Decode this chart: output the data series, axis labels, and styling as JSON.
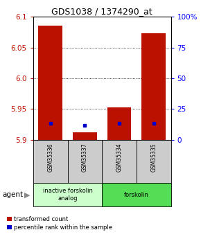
{
  "title": "GDS1038 / 1374290_at",
  "samples": [
    "GSM35336",
    "GSM35337",
    "GSM35334",
    "GSM35335"
  ],
  "red_values": [
    6.086,
    5.912,
    5.953,
    6.073
  ],
  "blue_values": [
    5.927,
    5.924,
    5.927,
    5.927
  ],
  "ymin": 5.9,
  "ymax": 6.1,
  "yticks_left": [
    5.9,
    5.95,
    6.0,
    6.05,
    6.1
  ],
  "yticks_right": [
    0,
    25,
    50,
    75,
    100
  ],
  "groups": [
    {
      "label": "inactive forskolin\nanalog",
      "cols": [
        0,
        1
      ],
      "color": "#ccffcc"
    },
    {
      "label": "forskolin",
      "cols": [
        2,
        3
      ],
      "color": "#55dd55"
    }
  ],
  "agent_label": "agent",
  "legend_red": "transformed count",
  "legend_blue": "percentile rank within the sample",
  "title_fontsize": 9,
  "tick_fontsize": 7.5,
  "bar_width": 0.7,
  "red_color": "#bb1100",
  "blue_color": "#0000cc",
  "sample_box_color": "#cccccc",
  "grid_color": "#000000",
  "grid_linestyle": ":",
  "grid_linewidth": 0.6
}
